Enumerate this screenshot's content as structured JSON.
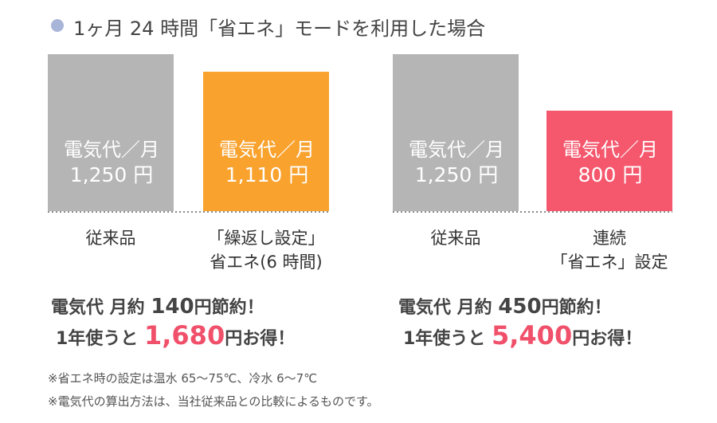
{
  "title": "1ヶ月 24 時間「省エネ」モードを利用した場合",
  "chart_data": [
    {
      "type": "bar",
      "bar_caption": "電気代／月",
      "categories": [
        "従来品",
        "「繰返し設定」\n省エネ(6 時間)"
      ],
      "values": [
        1250,
        1110
      ],
      "value_labels": [
        "1,250 円",
        "1,110 円"
      ],
      "colors": [
        "#b5b5b5",
        "#f9a22e"
      ],
      "ylim": [
        0,
        1250
      ]
    },
    {
      "type": "bar",
      "bar_caption": "電気代／月",
      "categories": [
        "従来品",
        "連続\n「省エネ」設定"
      ],
      "values": [
        1250,
        800
      ],
      "value_labels": [
        "1,250 円",
        "800 円"
      ],
      "colors": [
        "#b5b5b5",
        "#f5576d"
      ],
      "ylim": [
        0,
        1250
      ]
    }
  ],
  "savings": [
    {
      "monthly": {
        "prefix": "電気代 月約",
        "amount": "140",
        "suffix": "円節約！"
      },
      "yearly": {
        "prefix": "1年使うと",
        "amount": "1,680",
        "suffix": "円お得！"
      }
    },
    {
      "monthly": {
        "prefix": "電気代 月約",
        "amount": "450",
        "suffix": "円節約！"
      },
      "yearly": {
        "prefix": "1年使うと",
        "amount": "5,400",
        "suffix": "円お得！"
      }
    }
  ],
  "notes": [
    "※省エネ時の設定は温水 65～75℃、冷水 6～7℃",
    "※電気代の算出方法は、当社従来品との比較によるものです。"
  ]
}
